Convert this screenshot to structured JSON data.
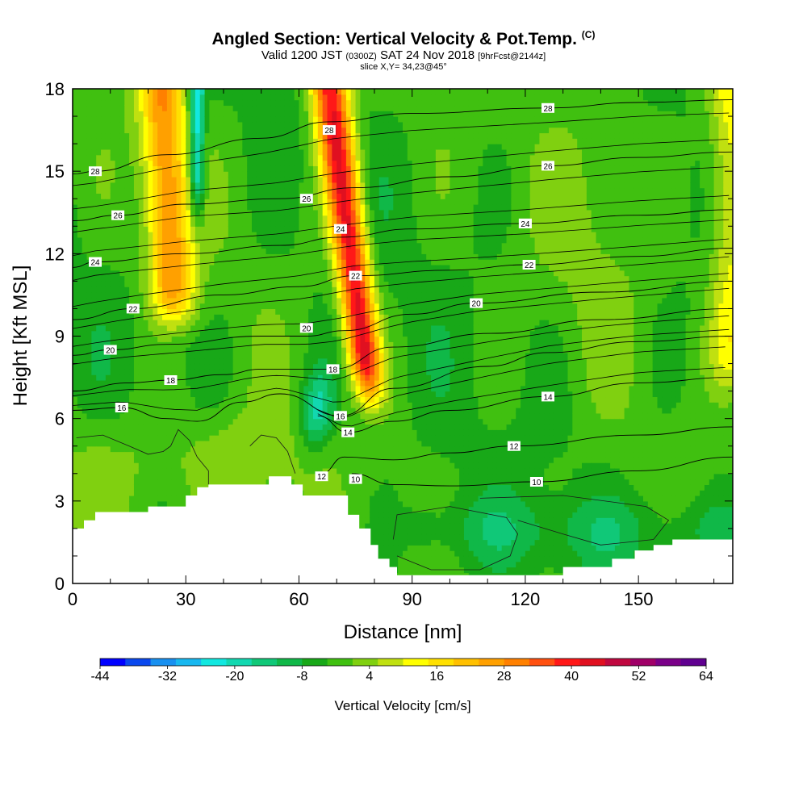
{
  "chart_data": {
    "type": "heatmap",
    "title": "Angled Section: Vertical Velocity & Pot.Temp.",
    "title_unit": "(C)",
    "subtitle_prefix": "Valid 1200 JST",
    "subtitle_utc": "(0300Z)",
    "subtitle_date": "SAT 24 Nov 2018",
    "subtitle_fcst": "[9hrFcst@2144z]",
    "slice_label": "slice X,Y= 34,23@45°",
    "xlabel": "Distance [nm]",
    "ylabel": "Height [Kft MSL]",
    "xlim": [
      0,
      175
    ],
    "ylim": [
      0,
      18
    ],
    "x_ticks": [
      0,
      30,
      60,
      90,
      120,
      150
    ],
    "y_ticks": [
      0,
      3,
      6,
      9,
      12,
      15,
      18
    ],
    "colorbar": {
      "label": "Vertical Velocity [cm/s]",
      "range": [
        -44,
        64
      ],
      "tick_labels": [
        "-44",
        "-32",
        "-20",
        "-8",
        "4",
        "16",
        "28",
        "40",
        "52",
        "64"
      ],
      "colors": [
        "#0000ff",
        "#0a48ee",
        "#1890f0",
        "#18b8f0",
        "#12e8e0",
        "#12d8b0",
        "#10c878",
        "#10b848",
        "#18a818",
        "#40c010",
        "#80d010",
        "#c0e010",
        "#ffff00",
        "#ffe000",
        "#ffc000",
        "#ffa000",
        "#ff8000",
        "#ff5010",
        "#ff1818",
        "#e01020",
        "#c00840",
        "#a00068",
        "#7a0088",
        "#600090"
      ]
    },
    "updrafts": [
      {
        "x_center": 26,
        "z_bottom": 8.5,
        "z_top": 18,
        "max_w": 30
      },
      {
        "x_center": 69,
        "z_bottom": 5.5,
        "z_top": 18,
        "max_w": 46
      },
      {
        "x_center": 175,
        "z_bottom": 6.0,
        "z_top": 18,
        "max_w": 16
      }
    ],
    "downdrafts": [
      {
        "x_center": 33,
        "z_bottom": 12.0,
        "z_top": 18,
        "min_w": -24
      },
      {
        "x_center": 65,
        "z_bottom": 5.0,
        "z_top": 8.5,
        "min_w": -16
      }
    ],
    "terrain": [
      [
        0,
        2.0
      ],
      [
        3,
        2.0
      ],
      [
        3,
        2.3
      ],
      [
        6,
        2.3
      ],
      [
        6,
        2.6
      ],
      [
        20,
        2.6
      ],
      [
        20,
        2.8
      ],
      [
        30,
        2.8
      ],
      [
        30,
        3.2
      ],
      [
        33,
        3.2
      ],
      [
        33,
        3.5
      ],
      [
        36,
        3.5
      ],
      [
        36,
        3.6
      ],
      [
        52,
        3.6
      ],
      [
        52,
        3.9
      ],
      [
        58,
        3.9
      ],
      [
        58,
        3.6
      ],
      [
        61,
        3.6
      ],
      [
        61,
        3.2
      ],
      [
        73,
        3.2
      ],
      [
        73,
        2.5
      ],
      [
        76,
        2.5
      ],
      [
        76,
        2.0
      ],
      [
        79,
        2.0
      ],
      [
        79,
        1.4
      ],
      [
        81,
        1.4
      ],
      [
        81,
        0.9
      ],
      [
        84,
        0.9
      ],
      [
        84,
        0.6
      ],
      [
        86,
        0.6
      ],
      [
        86,
        0.3
      ],
      [
        130,
        0.3
      ],
      [
        130,
        0.6
      ],
      [
        143,
        0.6
      ],
      [
        143,
        0.9
      ],
      [
        149,
        0.9
      ],
      [
        149,
        1.2
      ],
      [
        154,
        1.2
      ],
      [
        154,
        1.4
      ],
      [
        159,
        1.4
      ],
      [
        159,
        1.6
      ],
      [
        175,
        1.6
      ]
    ],
    "theta_contours": [
      {
        "value": 10,
        "label": "10",
        "label_pos": [
          123,
          3.7
        ],
        "points": [
          [
            74,
            4.0
          ],
          [
            85,
            3.6
          ],
          [
            100,
            3.55
          ],
          [
            123,
            3.7
          ],
          [
            150,
            4.1
          ],
          [
            175,
            4.6
          ]
        ]
      },
      {
        "value": 12,
        "label": "12",
        "label_pos": [
          117,
          5.0
        ],
        "points": [
          [
            66,
            4.0
          ],
          [
            72,
            4.6
          ],
          [
            85,
            4.5
          ],
          [
            100,
            4.75
          ],
          [
            117,
            5.0
          ],
          [
            150,
            5.4
          ],
          [
            175,
            5.7
          ]
        ]
      },
      {
        "value": 14,
        "label": "14",
        "label_pos": [
          126,
          6.8
        ],
        "points": [
          [
            65,
            6.1
          ],
          [
            73,
            5.5
          ],
          [
            85,
            5.9
          ],
          [
            100,
            6.3
          ],
          [
            126,
            6.8
          ],
          [
            150,
            7.3
          ],
          [
            175,
            7.5
          ]
        ]
      },
      {
        "value": 16,
        "label": "16",
        "label_pos": [
          13,
          6.4
        ],
        "points": [
          [
            0,
            6.3
          ],
          [
            13,
            6.4
          ],
          [
            25,
            6.0
          ],
          [
            33,
            5.9
          ],
          [
            45,
            6.6
          ],
          [
            55,
            6.9
          ],
          [
            71,
            6.1
          ],
          [
            85,
            7.1
          ],
          [
            110,
            7.9
          ],
          [
            126,
            8.4
          ],
          [
            150,
            8.8
          ],
          [
            175,
            9.0
          ]
        ]
      },
      {
        "value": 18,
        "label": "18",
        "label_pos": [
          26,
          7.4
        ],
        "points": [
          [
            0,
            7.0
          ],
          [
            15,
            7.3
          ],
          [
            26,
            7.4
          ],
          [
            40,
            7.6
          ],
          [
            50,
            7.8
          ],
          [
            65,
            7.8
          ],
          [
            69,
            7.8
          ],
          [
            85,
            8.6
          ],
          [
            111,
            9.1
          ],
          [
            140,
            9.6
          ],
          [
            175,
            10.0
          ]
        ]
      },
      {
        "value": 20,
        "label": "20",
        "label_pos": [
          107,
          10.2
        ],
        "points": [
          [
            0,
            8.3
          ],
          [
            10,
            8.5
          ],
          [
            25,
            8.7
          ],
          [
            50,
            9.0
          ],
          [
            62,
            9.0
          ],
          [
            72,
            9.2
          ],
          [
            90,
            9.8
          ],
          [
            107,
            10.2
          ],
          [
            140,
            10.6
          ],
          [
            175,
            11.0
          ]
        ]
      },
      {
        "value": 22,
        "label": "22",
        "label_pos": [
          121,
          11.6
        ],
        "points": [
          [
            0,
            9.6
          ],
          [
            16,
            10.0
          ],
          [
            40,
            10.5
          ],
          [
            60,
            10.8
          ],
          [
            75,
            11.2
          ],
          [
            100,
            11.4
          ],
          [
            121,
            11.6
          ],
          [
            150,
            11.9
          ],
          [
            175,
            12.2
          ]
        ]
      },
      {
        "value": 24,
        "label": "24",
        "label_pos": [
          120,
          13.1
        ],
        "points": [
          [
            0,
            11.5
          ],
          [
            6,
            11.7
          ],
          [
            30,
            12.0
          ],
          [
            55,
            12.3
          ],
          [
            71,
            12.6
          ],
          [
            90,
            12.9
          ],
          [
            120,
            13.1
          ],
          [
            150,
            13.4
          ],
          [
            175,
            13.6
          ]
        ]
      },
      {
        "value": 26,
        "label": "26",
        "label_pos": [
          126,
          15.2
        ],
        "points": [
          [
            0,
            13.2
          ],
          [
            12,
            13.4
          ],
          [
            30,
            13.8
          ],
          [
            55,
            14.0
          ],
          [
            75,
            14.4
          ],
          [
            100,
            14.8
          ],
          [
            126,
            15.2
          ],
          [
            150,
            15.5
          ],
          [
            175,
            15.7
          ]
        ]
      },
      {
        "value": 28,
        "label": "28",
        "label_pos": [
          126,
          17.3
        ],
        "points": [
          [
            0,
            14.9
          ],
          [
            6,
            15.0
          ],
          [
            25,
            15.6
          ],
          [
            50,
            16.2
          ],
          [
            68,
            16.8
          ],
          [
            90,
            17.1
          ],
          [
            126,
            17.3
          ],
          [
            150,
            17.5
          ],
          [
            175,
            17.6
          ]
        ]
      }
    ],
    "extra_theta_levels": [
      14.5,
      15.5,
      16.5,
      17.5,
      19.5,
      20.5,
      21.5,
      22.5,
      23.5,
      24.5,
      25.5,
      26.5,
      27.5
    ],
    "inline_labels": [
      {
        "label": "28",
        "pos": [
          68,
          16.5
        ]
      },
      {
        "label": "26",
        "pos": [
          62,
          14.0
        ]
      },
      {
        "label": "24",
        "pos": [
          71,
          12.9
        ]
      },
      {
        "label": "22",
        "pos": [
          75,
          11.2
        ]
      },
      {
        "label": "20",
        "pos": [
          62,
          9.3
        ]
      },
      {
        "label": "18",
        "pos": [
          69,
          7.8
        ]
      },
      {
        "label": "16",
        "pos": [
          71,
          6.1
        ]
      },
      {
        "label": "14",
        "pos": [
          73,
          5.5
        ]
      },
      {
        "label": "12",
        "pos": [
          66,
          3.9
        ]
      },
      {
        "label": "10",
        "pos": [
          75,
          3.8
        ]
      },
      {
        "label": "24",
        "pos": [
          6,
          11.7
        ]
      },
      {
        "label": "26",
        "pos": [
          12,
          13.4
        ]
      },
      {
        "label": "28",
        "pos": [
          6,
          15.0
        ]
      },
      {
        "label": "22",
        "pos": [
          16,
          10.0
        ]
      },
      {
        "label": "20",
        "pos": [
          10,
          8.5
        ]
      },
      {
        "label": "24",
        "pos": [
          120,
          13.1
        ]
      }
    ],
    "w_zero_contours": [
      [
        [
          1,
          5.3
        ],
        [
          8,
          5.4
        ],
        [
          15,
          5.0
        ],
        [
          20,
          4.7
        ],
        [
          24,
          4.8
        ],
        [
          26,
          5.0
        ],
        [
          28,
          5.6
        ],
        [
          31,
          5.2
        ],
        [
          33,
          4.6
        ],
        [
          36,
          4.1
        ],
        [
          36,
          3.6
        ]
      ],
      [
        [
          47,
          5.0
        ],
        [
          50,
          5.4
        ],
        [
          54,
          5.3
        ],
        [
          57,
          4.8
        ],
        [
          59,
          4.0
        ]
      ],
      [
        [
          85,
          1.6
        ],
        [
          86,
          2.5
        ],
        [
          100,
          2.8
        ],
        [
          115,
          2.4
        ],
        [
          118,
          1.8
        ],
        [
          116,
          1.0
        ],
        [
          108,
          0.5
        ],
        [
          95,
          0.5
        ],
        [
          86,
          1.0
        ]
      ],
      [
        [
          108,
          3.1
        ],
        [
          130,
          3.2
        ],
        [
          152,
          2.8
        ],
        [
          158,
          2.3
        ],
        [
          154,
          1.6
        ],
        [
          140,
          1.4
        ],
        [
          130,
          1.8
        ],
        [
          118,
          2.3
        ]
      ]
    ]
  }
}
